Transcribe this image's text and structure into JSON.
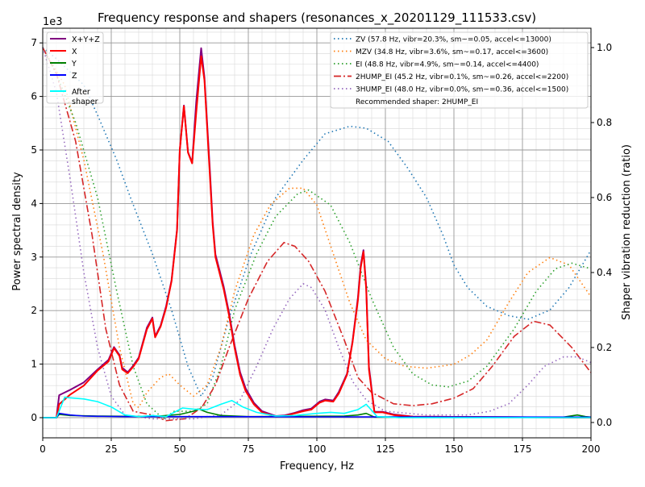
{
  "chart_data": {
    "type": "line",
    "title": "Frequency response and shapers (resonances_x_20201129_111533.csv)",
    "xlabel": "Frequency, Hz",
    "ylabel": "Power spectral density",
    "ylabel_right": "Shaper vibration reduction (ratio)",
    "y_offset_label": "1e3",
    "xlim": [
      0,
      200
    ],
    "ylim": [
      -0.35,
      7.25
    ],
    "ylim_right": [
      -0.06,
      1.04
    ],
    "xticks": [
      "0",
      "25",
      "50",
      "75",
      "100",
      "125",
      "150",
      "175",
      "200"
    ],
    "yticks": [
      "0",
      "1",
      "2",
      "3",
      "4",
      "5",
      "6",
      "7"
    ],
    "yticks_right": [
      "0.0",
      "0.2",
      "0.4",
      "0.6",
      "0.8",
      "1.0"
    ],
    "grid": true,
    "legend_left_position": "top-left",
    "legend_right_position": "top-right",
    "psd_series": [
      {
        "name": "X+Y+Z",
        "color": "#800080",
        "x": [
          0,
          5,
          6,
          10,
          15,
          20,
          24,
          26,
          28,
          29,
          31,
          33,
          35,
          38,
          40,
          41,
          43,
          45,
          47,
          49,
          50,
          51.5,
          53,
          54.5,
          56,
          57.8,
          59,
          61,
          62,
          63,
          66,
          68,
          70,
          72,
          74,
          77,
          80,
          85,
          88,
          92,
          95,
          98,
          101,
          103,
          106,
          108,
          111,
          113,
          115,
          116,
          117,
          118,
          119,
          121,
          124,
          128,
          135,
          200
        ],
        "y": [
          0,
          0,
          420,
          520,
          660,
          900,
          1080,
          1320,
          1170,
          930,
          850,
          970,
          1120,
          1680,
          1870,
          1520,
          1720,
          2080,
          2570,
          3520,
          5000,
          5830,
          4960,
          4760,
          5900,
          6900,
          6350,
          4600,
          3650,
          3050,
          2450,
          1950,
          1350,
          850,
          550,
          280,
          120,
          30,
          40,
          90,
          140,
          170,
          300,
          340,
          320,
          480,
          820,
          1420,
          2250,
          2850,
          3130,
          2450,
          950,
          110,
          110,
          60,
          20,
          0
        ]
      },
      {
        "name": "X",
        "color": "#ff0000",
        "x": [
          0,
          5,
          6,
          10,
          15,
          20,
          24,
          26,
          28,
          29,
          31,
          33,
          35,
          38,
          40,
          41,
          43,
          45,
          47,
          49,
          50,
          51.5,
          53,
          54.5,
          56,
          57.8,
          59,
          61,
          62,
          63,
          66,
          68,
          70,
          72,
          74,
          77,
          80,
          85,
          88,
          92,
          95,
          98,
          101,
          103,
          106,
          108,
          111,
          113,
          115,
          116,
          117,
          118,
          119,
          121,
          124,
          128,
          135,
          200
        ],
        "y": [
          0,
          0,
          250,
          430,
          600,
          880,
          1050,
          1300,
          1150,
          900,
          830,
          950,
          1100,
          1650,
          1850,
          1500,
          1700,
          2050,
          2550,
          3500,
          5000,
          5820,
          4950,
          4750,
          5700,
          6750,
          6300,
          4500,
          3600,
          3000,
          2400,
          1900,
          1300,
          800,
          500,
          250,
          100,
          20,
          30,
          80,
          120,
          150,
          280,
          320,
          300,
          450,
          800,
          1400,
          2200,
          2800,
          3100,
          2400,
          900,
          100,
          100,
          50,
          20,
          0
        ]
      },
      {
        "name": "Y",
        "color": "#008000",
        "x": [
          0,
          5,
          6,
          10,
          20,
          40,
          50,
          55,
          57,
          60,
          65,
          75,
          110,
          115,
          118,
          121,
          190,
          195,
          198,
          200
        ],
        "y": [
          0,
          0,
          60,
          40,
          30,
          20,
          60,
          120,
          160,
          100,
          40,
          20,
          30,
          50,
          80,
          10,
          10,
          50,
          20,
          10
        ]
      },
      {
        "name": "Z",
        "color": "#0000ff",
        "x": [
          0,
          5,
          6,
          10,
          15,
          20,
          30,
          60,
          100,
          200
        ],
        "y": [
          0,
          0,
          80,
          50,
          30,
          25,
          20,
          20,
          15,
          10
        ]
      },
      {
        "name": "After\nshaper",
        "color": "#00ffff",
        "x": [
          0,
          5,
          8,
          15,
          20,
          25,
          30,
          35,
          40,
          45,
          51,
          55,
          60,
          65,
          69,
          73,
          78,
          85,
          92,
          100,
          105,
          110,
          115,
          118,
          122,
          130,
          200
        ],
        "y": [
          0,
          0,
          380,
          350,
          300,
          200,
          50,
          20,
          40,
          20,
          180,
          160,
          150,
          250,
          320,
          200,
          100,
          30,
          40,
          80,
          100,
          80,
          150,
          250,
          20,
          0,
          0
        ]
      }
    ],
    "shaper_series": [
      {
        "name": "ZV (57.8 Hz, vibr=20.3%, sm~=0.05, accel<=13000)",
        "color": "#1f77b4",
        "dash": "dotted",
        "x": [
          0,
          5,
          15,
          20,
          27,
          32,
          40,
          47,
          53,
          57.8,
          62,
          68,
          76,
          85,
          95,
          103,
          112,
          118,
          126,
          133,
          140,
          146,
          150,
          155,
          162,
          170,
          177,
          185,
          192,
          200
        ],
        "y": [
          1.0,
          0.97,
          0.9,
          0.82,
          0.7,
          0.6,
          0.45,
          0.3,
          0.15,
          0.07,
          0.12,
          0.28,
          0.45,
          0.6,
          0.7,
          0.77,
          0.79,
          0.785,
          0.75,
          0.68,
          0.6,
          0.5,
          0.42,
          0.36,
          0.31,
          0.285,
          0.275,
          0.3,
          0.36,
          0.46
        ]
      },
      {
        "name": "MZV (34.8 Hz, vibr=3.6%, sm~=0.17, accel<=3600)",
        "color": "#ff7f0e",
        "dash": "dotted",
        "x": [
          0,
          8,
          15,
          22,
          28,
          33,
          35,
          38,
          43,
          46,
          50,
          55,
          60,
          65,
          70,
          77,
          83,
          90,
          95,
          100,
          106,
          112,
          118,
          125,
          132,
          140,
          150,
          156,
          162,
          170,
          177,
          185,
          192,
          200
        ],
        "y": [
          1.0,
          0.9,
          0.7,
          0.45,
          0.2,
          0.05,
          0.04,
          0.08,
          0.12,
          0.13,
          0.1,
          0.07,
          0.1,
          0.2,
          0.35,
          0.5,
          0.58,
          0.625,
          0.625,
          0.58,
          0.45,
          0.32,
          0.22,
          0.17,
          0.15,
          0.145,
          0.155,
          0.18,
          0.22,
          0.32,
          0.4,
          0.44,
          0.42,
          0.335
        ]
      },
      {
        "name": "EI (48.8 Hz, vibr=4.9%, sm~=0.14, accel<=4400)",
        "color": "#2ca02c",
        "dash": "dotted",
        "x": [
          0,
          5,
          12,
          20,
          27,
          33,
          38,
          44,
          48,
          55,
          60,
          65,
          70,
          78,
          85,
          93,
          97,
          105,
          112,
          120,
          128,
          135,
          142,
          148,
          155,
          162,
          172,
          180,
          187,
          193,
          200
        ],
        "y": [
          1.0,
          0.93,
          0.8,
          0.6,
          0.35,
          0.15,
          0.05,
          0.01,
          0.03,
          0.03,
          0.05,
          0.15,
          0.3,
          0.45,
          0.55,
          0.61,
          0.62,
          0.58,
          0.48,
          0.33,
          0.2,
          0.13,
          0.1,
          0.095,
          0.11,
          0.15,
          0.25,
          0.35,
          0.41,
          0.425,
          0.41
        ]
      },
      {
        "name": "2HUMP_EI (45.2 Hz, vibr=0.1%, sm~=0.26, accel<=2200)",
        "color": "#d62728",
        "dash": "dashdot",
        "x": [
          0,
          5,
          12,
          18,
          23,
          28,
          33,
          40,
          45,
          52,
          58,
          63,
          68,
          75,
          82,
          88,
          92,
          97,
          103,
          110,
          115,
          120,
          128,
          135,
          142,
          150,
          157,
          164,
          172,
          179,
          185,
          193,
          200
        ],
        "y": [
          1.0,
          0.93,
          0.75,
          0.5,
          0.25,
          0.1,
          0.03,
          0.02,
          0.005,
          0.01,
          0.04,
          0.1,
          0.2,
          0.33,
          0.43,
          0.48,
          0.47,
          0.43,
          0.35,
          0.22,
          0.12,
          0.08,
          0.05,
          0.045,
          0.05,
          0.065,
          0.09,
          0.15,
          0.23,
          0.27,
          0.26,
          0.2,
          0.133
        ]
      },
      {
        "name": "3HUMP_EI (48.0 Hz, vibr=0.0%, sm~=0.36, accel<=1500)",
        "color": "#9467bd",
        "dash": "dotted",
        "x": [
          0,
          5,
          10,
          15,
          20,
          25,
          30,
          40,
          55,
          65,
          72,
          78,
          84,
          90,
          95,
          98,
          103,
          108,
          113,
          118,
          125,
          140,
          155,
          163,
          170,
          177,
          183,
          190,
          195,
          200
        ],
        "y": [
          1.0,
          0.88,
          0.65,
          0.4,
          0.2,
          0.07,
          0.02,
          0.01,
          0.01,
          0.02,
          0.06,
          0.15,
          0.25,
          0.33,
          0.37,
          0.36,
          0.3,
          0.2,
          0.11,
          0.06,
          0.03,
          0.02,
          0.02,
          0.03,
          0.05,
          0.1,
          0.15,
          0.175,
          0.175,
          0.16
        ]
      }
    ],
    "recommendation": "Recommended shaper: 2HUMP_EI"
  }
}
